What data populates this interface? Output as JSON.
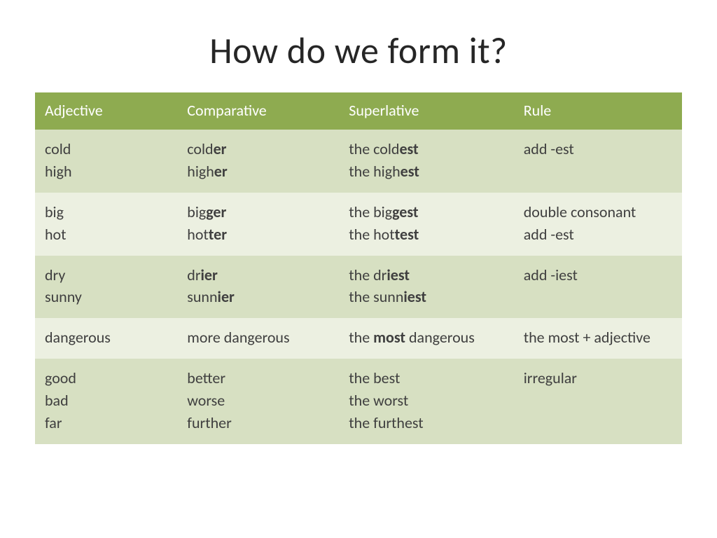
{
  "title": "How do we form it?",
  "table": {
    "header_bg": "#8eab50",
    "header_text": "#ffffff",
    "row_stripe_a": "#d7e0c2",
    "row_stripe_b": "#ecf0e1",
    "cell_text": "#3f3f3f",
    "body_fontsize": 22,
    "header_fontsize": 22,
    "columns": [
      "Adjective",
      "Comparative",
      "Superlative",
      "Rule"
    ],
    "rows": [
      {
        "adjective": [
          "cold",
          "high"
        ],
        "comparative": [
          {
            "pre": "cold",
            "bold": "er"
          },
          {
            "pre": "high",
            "bold": "er"
          }
        ],
        "superlative": [
          {
            "pre": "the cold",
            "bold": "est"
          },
          {
            "pre": "the high",
            "bold": "est"
          }
        ],
        "rule": [
          "add -est"
        ]
      },
      {
        "adjective": [
          "big",
          "hot"
        ],
        "comparative": [
          {
            "pre": "big",
            "bold": "ger"
          },
          {
            "pre": "hot",
            "bold": "ter"
          }
        ],
        "superlative": [
          {
            "pre": "the big",
            "bold": "gest"
          },
          {
            "pre": "the hot",
            "bold": "test"
          }
        ],
        "rule": [
          "double consonant",
          "add -est"
        ]
      },
      {
        "adjective": [
          "dry",
          "sunny"
        ],
        "comparative": [
          {
            "pre": "dr",
            "bold": "ier"
          },
          {
            "pre": "sunn",
            "bold": "ier"
          }
        ],
        "superlative": [
          {
            "pre": "the dr",
            "bold": "iest"
          },
          {
            "pre": "the sunn",
            "bold": "iest"
          }
        ],
        "rule": [
          "add -iest"
        ]
      },
      {
        "adjective": [
          "dangerous"
        ],
        "comparative": [
          {
            "pre": "more dangerous",
            "bold": ""
          }
        ],
        "superlative": [
          {
            "pre": "the ",
            "bold": "most",
            "post": " dangerous"
          }
        ],
        "rule": [
          "the most + adjective"
        ]
      },
      {
        "adjective": [
          "good",
          "bad",
          "far"
        ],
        "comparative": [
          {
            "pre": "better",
            "bold": ""
          },
          {
            "pre": "worse",
            "bold": ""
          },
          {
            "pre": "further",
            "bold": ""
          }
        ],
        "superlative": [
          {
            "pre": "the best",
            "bold": ""
          },
          {
            "pre": "the worst",
            "bold": ""
          },
          {
            "pre": "the furthest",
            "bold": ""
          }
        ],
        "rule": [
          "irregular"
        ]
      }
    ]
  }
}
